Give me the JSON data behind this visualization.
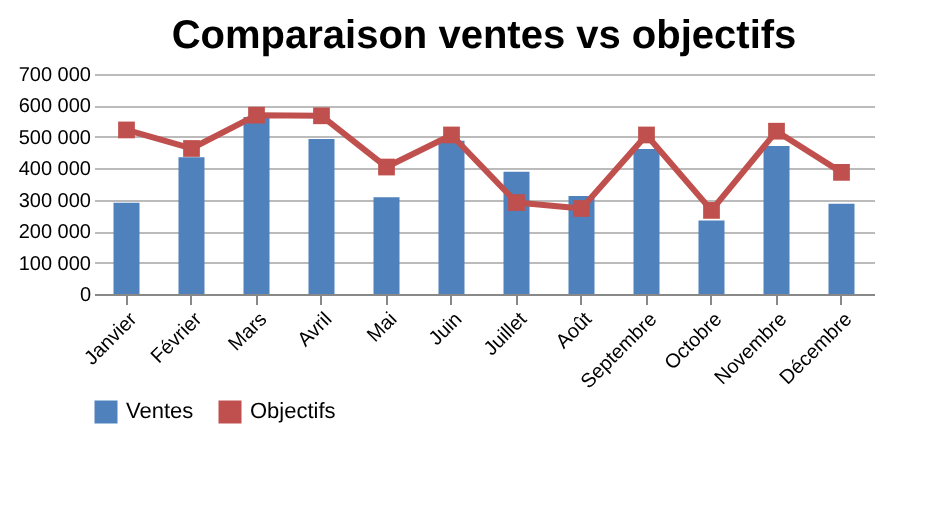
{
  "chart_data": {
    "type": "bar",
    "title": "Comparaison ventes vs objectifs",
    "categories": [
      "Janvier",
      "Février",
      "Mars",
      "Avril",
      "Mai",
      "Juin",
      "Juillet",
      "Août",
      "Septembre",
      "Octobre",
      "Novembre",
      "Décembre"
    ],
    "series": [
      {
        "name": "Ventes",
        "color": "#4f81bd",
        "values": [
          290000,
          435000,
          563000,
          493000,
          308000,
          488000,
          389000,
          312000,
          461000,
          234000,
          471000,
          287000
        ]
      },
      {
        "name": "Objectifs",
        "type": "line",
        "color": "#c0504d",
        "marker": "square",
        "values": [
          522000,
          463000,
          569000,
          567000,
          404000,
          506000,
          291000,
          272000,
          506000,
          266000,
          518000,
          387000
        ]
      }
    ],
    "ylim": [
      0,
      700000
    ],
    "yticks": [
      {
        "value": 0,
        "label": "0"
      },
      {
        "value": 100000,
        "label": "100 000"
      },
      {
        "value": 200000,
        "label": "200 000"
      },
      {
        "value": 300000,
        "label": "300 000"
      },
      {
        "value": 400000,
        "label": "400 000"
      },
      {
        "value": 500000,
        "label": "500 000"
      },
      {
        "value": 600000,
        "label": "600 000"
      },
      {
        "value": 700000,
        "label": "700 000"
      }
    ],
    "grid": "y",
    "legend": "bottom"
  }
}
